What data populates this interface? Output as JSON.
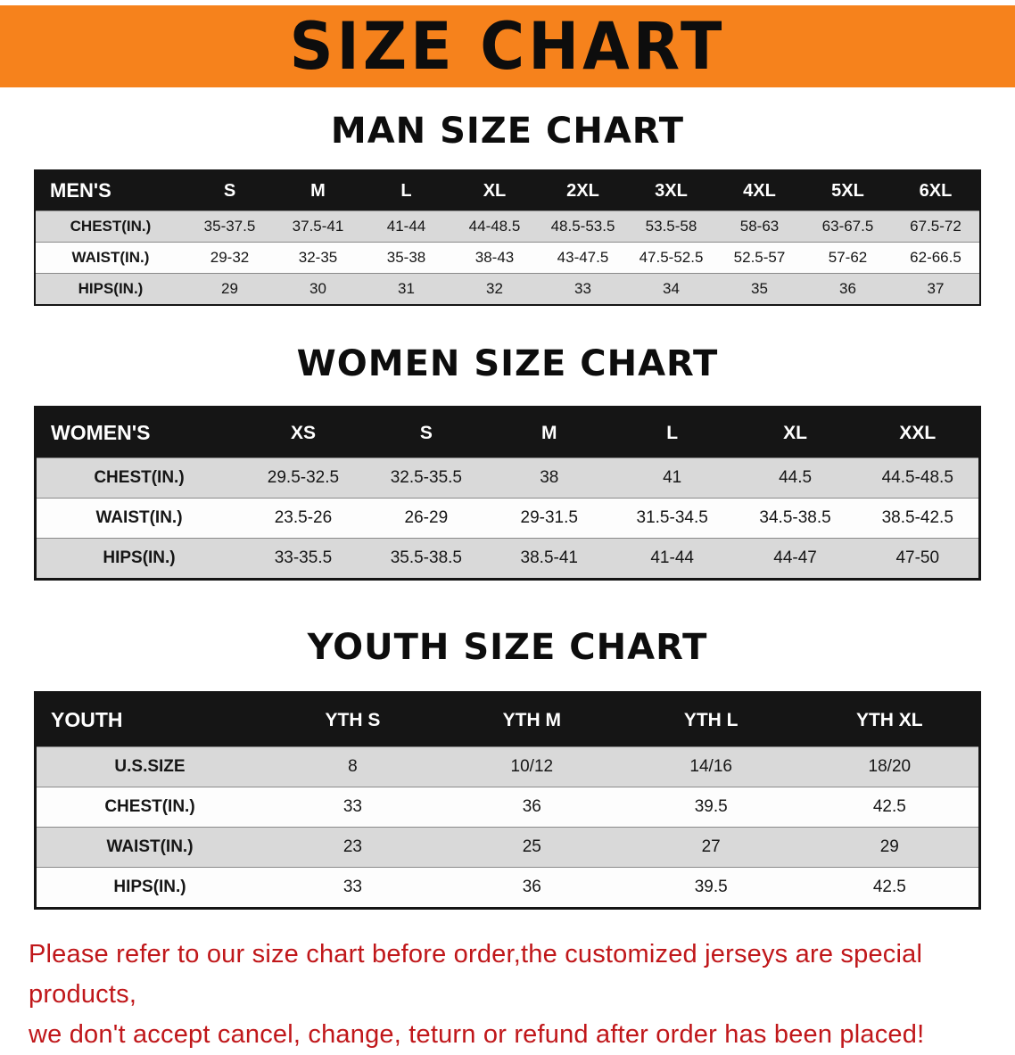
{
  "banner": {
    "title": "SIZE CHART"
  },
  "colors": {
    "banner_bg": "#f6821c",
    "table_header_bg": "#151515",
    "row_alt_gray": "#d9d9d9",
    "note_red": "#c0171a"
  },
  "men": {
    "heading": "MAN SIZE CHART",
    "table": {
      "header": [
        "MEN'S",
        "S",
        "M",
        "L",
        "XL",
        "2XL",
        "3XL",
        "4XL",
        "5XL",
        "6XL"
      ],
      "rows": [
        {
          "label": "CHEST(IN.)",
          "values": [
            "35-37.5",
            "37.5-41",
            "41-44",
            "44-48.5",
            "48.5-53.5",
            "53.5-58",
            "58-63",
            "63-67.5",
            "67.5-72"
          ]
        },
        {
          "label": "WAIST(IN.)",
          "values": [
            "29-32",
            "32-35",
            "35-38",
            "38-43",
            "43-47.5",
            "47.5-52.5",
            "52.5-57",
            "57-62",
            "62-66.5"
          ]
        },
        {
          "label": "HIPS(IN.)",
          "values": [
            "29",
            "30",
            "31",
            "32",
            "33",
            "34",
            "35",
            "36",
            "37"
          ]
        }
      ]
    }
  },
  "women": {
    "heading": "WOMEN SIZE CHART",
    "table": {
      "header": [
        "WOMEN'S",
        "XS",
        "S",
        "M",
        "L",
        "XL",
        "XXL"
      ],
      "rows": [
        {
          "label": "CHEST(IN.)",
          "values": [
            "29.5-32.5",
            "32.5-35.5",
            "38",
            "41",
            "44.5",
            "44.5-48.5"
          ]
        },
        {
          "label": "WAIST(IN.)",
          "values": [
            "23.5-26",
            "26-29",
            "29-31.5",
            "31.5-34.5",
            "34.5-38.5",
            "38.5-42.5"
          ]
        },
        {
          "label": "HIPS(IN.)",
          "values": [
            "33-35.5",
            "35.5-38.5",
            "38.5-41",
            "41-44",
            "44-47",
            "47-50"
          ]
        }
      ]
    }
  },
  "youth": {
    "heading": "YOUTH SIZE CHART",
    "table": {
      "header": [
        "YOUTH",
        "YTH S",
        "YTH M",
        "YTH L",
        "YTH XL"
      ],
      "rows": [
        {
          "label": "U.S.SIZE",
          "values": [
            "8",
            "10/12",
            "14/16",
            "18/20"
          ]
        },
        {
          "label": "CHEST(IN.)",
          "values": [
            "33",
            "36",
            "39.5",
            "42.5"
          ]
        },
        {
          "label": "WAIST(IN.)",
          "values": [
            "23",
            "25",
            "27",
            "29"
          ]
        },
        {
          "label": "HIPS(IN.)",
          "values": [
            "33",
            "36",
            "39.5",
            "42.5"
          ]
        }
      ]
    }
  },
  "note": {
    "line1": "Please refer to our size chart before order,the customized jerseys are special products,",
    "line2": "we don't accept cancel, change, teturn or refund after order has been placed!"
  }
}
